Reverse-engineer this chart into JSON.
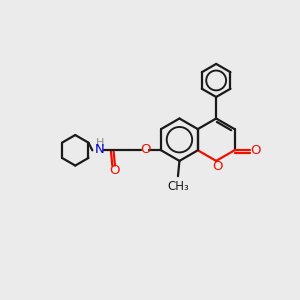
{
  "bg_color": "#ebebeb",
  "bond_color": "#1a1a1a",
  "o_color": "#ee1100",
  "n_color": "#0000cc",
  "lw": 1.6,
  "fs": 8.5,
  "xlim": [
    0,
    10
  ],
  "ylim": [
    0,
    10
  ]
}
